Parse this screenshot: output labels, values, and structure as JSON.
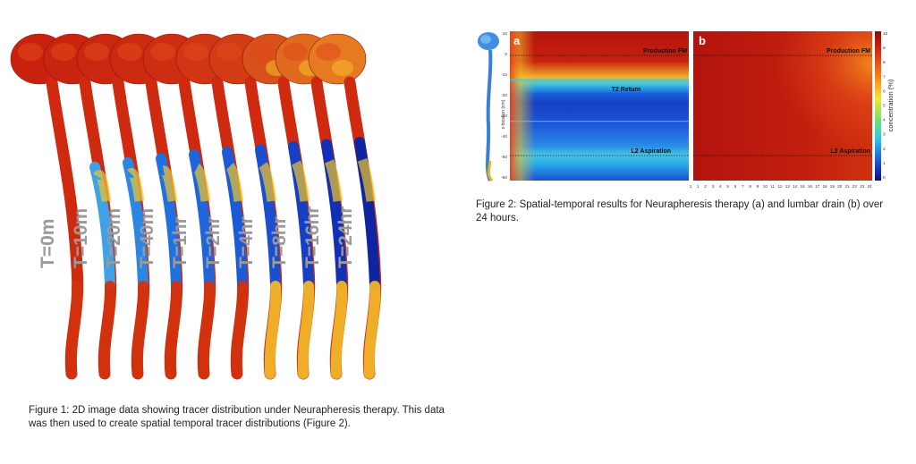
{
  "figure1": {
    "time_labels": [
      "T=0m",
      "T=10m",
      "T=20m",
      "T=40m",
      "T=1hr",
      "T=2hr",
      "T=4hr",
      "T=8hr",
      "T=16hr",
      "T=24hr"
    ],
    "caption": "Figure 1: 2D image data showing tracer distribution under Neurapheresis therapy. This data was then used to create spatial temporal tracer distributions (Figure 2)."
  },
  "figure2": {
    "panel_a_label": "a",
    "panel_b_label": "b",
    "annotations": [
      "Production FM",
      "T2 Return",
      "L2 Aspiration"
    ],
    "y_axis_label": "z-location (cm)",
    "y_ticks": [
      "10",
      "0",
      "-10",
      "-20",
      "-30",
      "-40",
      "-50",
      "-60"
    ],
    "x_ticks": [
      "1",
      "1",
      "2",
      "3",
      "4",
      "5",
      "6",
      "7",
      "8",
      "9",
      "10",
      "11",
      "12",
      "13",
      "14",
      "15",
      "16",
      "17",
      "18",
      "19",
      "20",
      "21",
      "22",
      "23",
      "24"
    ],
    "colorbar_label": "concentration (%)",
    "colorbar_ticks": [
      "10",
      "9",
      "8",
      "7",
      "6",
      "5",
      "4",
      "3",
      "2",
      "1",
      "0"
    ],
    "caption": "Figure 2: Spatial-temporal results for Neurapheresis therapy (a) and lumbar drain (b) over 24 hours."
  },
  "colors": {
    "high": "#b01a0c",
    "mid_red": "#e8421c",
    "yellow": "#f2d12e",
    "cyan": "#25c3e0",
    "blue": "#1b4fd6",
    "dark_blue": "#0d1f8f"
  }
}
